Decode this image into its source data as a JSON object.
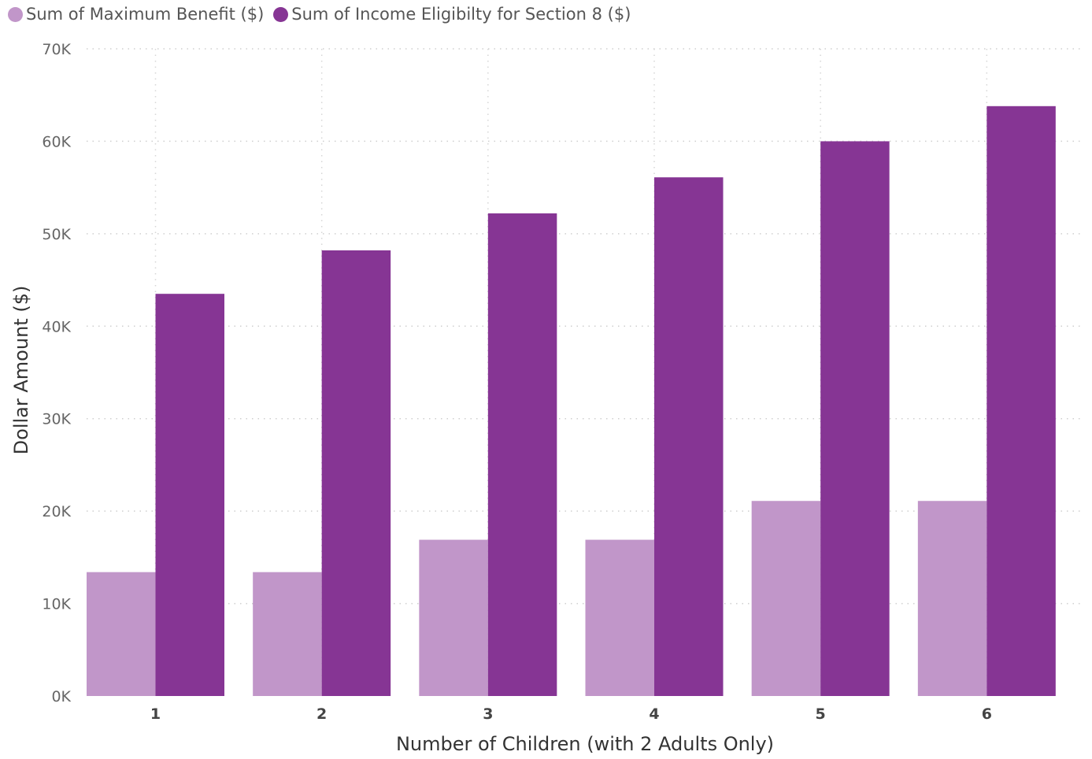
{
  "chart_data": {
    "type": "bar",
    "categories": [
      "1",
      "2",
      "3",
      "4",
      "5",
      "6"
    ],
    "series": [
      {
        "name": "Sum of Maximum Benefit ($)",
        "color": "#c196c9",
        "values": [
          13400,
          13400,
          16900,
          16900,
          21100,
          21100
        ]
      },
      {
        "name": "Sum of Income Eligibilty for Section 8 ($)",
        "color": "#863594",
        "values": [
          43500,
          48200,
          52200,
          56100,
          60000,
          63800
        ]
      }
    ],
    "xlabel": "Number of Children (with 2 Adults Only)",
    "ylabel": "Dollar Amount ($)",
    "ylim": [
      0,
      70000
    ],
    "yticks": [
      "0K",
      "10K",
      "20K",
      "30K",
      "40K",
      "50K",
      "60K",
      "70K"
    ],
    "grid": true,
    "legend_position": "top-left"
  }
}
